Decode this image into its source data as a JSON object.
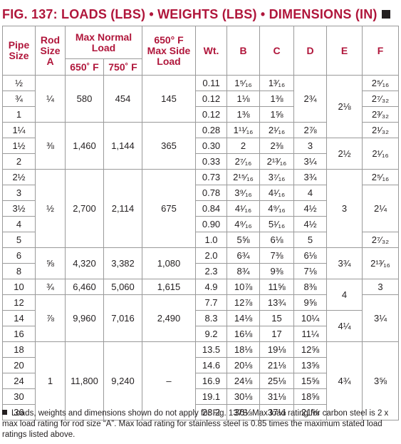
{
  "title": "FIG. 137: LOADS (LBS) • WEIGHTS (LBS) • DIMENSIONS (IN)",
  "headers": {
    "pipe_size": "Pipe Size",
    "rod_size": "Rod Size A",
    "max_normal_load": "Max Normal Load",
    "t650": "650˚ F",
    "t750": "750˚ F",
    "side_load": "650° F Max Side Load",
    "wt": "Wt.",
    "b": "B",
    "c": "C",
    "d": "D",
    "e": "E",
    "f": "F"
  },
  "pipe_size": [
    "½",
    "¾",
    "1",
    "1¼",
    "1½",
    "2",
    "2½",
    "3",
    "3½",
    "4",
    "5",
    "6",
    "8",
    "10",
    "12",
    "14",
    "16",
    "18",
    "20",
    "24",
    "30",
    "36"
  ],
  "wt": [
    "0.11",
    "0.12",
    "0.12",
    "0.28",
    "0.30",
    "0.33",
    "0.73",
    "0.78",
    "0.84",
    "0.90",
    "1.0",
    "2.0",
    "2.3",
    "4.9",
    "7.7",
    "8.3",
    "9.2",
    "13.5",
    "14.6",
    "16.9",
    "19.1",
    "23.2"
  ],
  "b": [
    "1⁵⁄₁₆",
    "1⅛",
    "1⅜",
    "1¹¹⁄₁₆",
    "2",
    "2⁷⁄₁₆",
    "2¹⁵⁄₁₆",
    "3⁹⁄₁₆",
    "4¹⁄₁₆",
    "4⁹⁄₁₆",
    "5⅝",
    "6¾",
    "8¾",
    "10⅞",
    "12⅞",
    "14⅛",
    "16⅛",
    "18⅛",
    "20⅛",
    "24⅛",
    "30⅛",
    "36⅛"
  ],
  "c": [
    "1³⁄₁₆",
    "1⅜",
    "1⅝",
    "2¹⁄₁₆",
    "2⅜",
    "2¹³⁄₁₆",
    "3⁷⁄₁₆",
    "4¹⁄₁₆",
    "4⁹⁄₁₆",
    "5¹⁄₁₆",
    "6⅛",
    "7⅜",
    "9⅜",
    "11⅝",
    "13¾",
    "15",
    "17",
    "19⅛",
    "21⅛",
    "25⅛",
    "31⅛",
    "37⅛"
  ],
  "d": {
    "g0": "2¾",
    "r3": "2⅞",
    "r4": "3",
    "r5": "3¼",
    "r6": "3¾",
    "r7": "4",
    "r8": "4½",
    "r9": "4½",
    "r10": "5",
    "r11": "6⅛",
    "r12": "7⅛",
    "r13": "8⅜",
    "r14": "9⅝",
    "r15": "10¼",
    "r16": "11¼",
    "r17": "12⅝",
    "r18": "13⅝",
    "r19": "15⅝",
    "r20": "18⅝",
    "r21": "21⅝"
  },
  "e": {
    "g0": "2⅛",
    "g1": "2½",
    "g2": "3",
    "g3": "3¾",
    "g4": "4",
    "g5": "4¼",
    "g6": "4¾"
  },
  "f": {
    "r0": "2⁵⁄₁₆",
    "r1": "2⁷⁄₃₂",
    "r2": "2³⁄₃₂",
    "r3": "2¹⁄₃₂",
    "g1": "2¹⁄₁₆",
    "r6": "2⁵⁄₁₆",
    "g2": "2¼",
    "r10": "2⁷⁄₃₂",
    "g3": "2¹³⁄₁₆",
    "r13": "3",
    "g5": "3¼",
    "g6": "3⅝"
  },
  "groups": [
    {
      "rod": "¼",
      "t650": "580",
      "t750": "454",
      "side": "145"
    },
    {
      "rod": "⅜",
      "t650": "1,460",
      "t750": "1,144",
      "side": "365"
    },
    {
      "rod": "½",
      "t650": "2,700",
      "t750": "2,114",
      "side": "675"
    },
    {
      "rod": "⅝",
      "t650": "4,320",
      "t750": "3,382",
      "side": "1,080"
    },
    {
      "rod": "¾",
      "t650": "6,460",
      "t750": "5,060",
      "side": "1,615"
    },
    {
      "rod": "⅞",
      "t650": "9,960",
      "t750": "7,016",
      "side": "2,490"
    },
    {
      "rod": "1",
      "t650": "11,800",
      "t750": "9,240",
      "side": "–"
    }
  ],
  "footnote": "Loads, weights and dimensions shown do not apply for Fig. 137S. Max load rating for carbon steel is 2 x max load rating for rod size “A”. Max load rating for stainless steel is 0.85 times the maximum stated load ratings listed above."
}
